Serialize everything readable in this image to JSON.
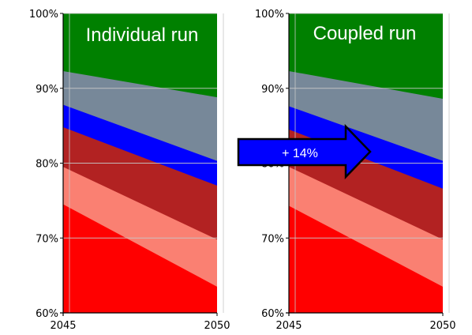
{
  "chart_data": [
    {
      "type": "area",
      "title": "Individual run",
      "x": [
        2045,
        2050
      ],
      "xlim": [
        2045,
        2050
      ],
      "ylim": [
        60,
        100
      ],
      "x_tick_labels": [
        "2045",
        "2050"
      ],
      "y_tick_labels": [
        "60%",
        "70%",
        "80%",
        "90%",
        "100%"
      ],
      "y_ticks": [
        60,
        70,
        80,
        90,
        100
      ],
      "grid": true,
      "boundaries": [
        {
          "color": "#ff0000",
          "values": [
            74.5,
            63.5
          ]
        },
        {
          "color": "#fa8072",
          "values": [
            79.5,
            69.8
          ]
        },
        {
          "color": "#b22222",
          "values": [
            84.8,
            77.0
          ]
        },
        {
          "color": "#0000ff",
          "values": [
            87.8,
            80.3
          ]
        },
        {
          "color": "#778899",
          "values": [
            92.3,
            88.8
          ]
        },
        {
          "color": "#008000",
          "values": [
            100,
            100
          ]
        }
      ]
    },
    {
      "type": "area",
      "title": "Coupled run",
      "x": [
        2045,
        2050
      ],
      "xlim": [
        2045,
        2050
      ],
      "ylim": [
        60,
        100
      ],
      "x_tick_labels": [
        "2045",
        "2050"
      ],
      "y_tick_labels": [
        "60%",
        "70%",
        "80%",
        "90%",
        "100%"
      ],
      "y_ticks": [
        60,
        70,
        80,
        90,
        100
      ],
      "grid": true,
      "boundaries": [
        {
          "color": "#ff0000",
          "values": [
            74.3,
            63.5
          ]
        },
        {
          "color": "#fa8072",
          "values": [
            79.5,
            69.8
          ]
        },
        {
          "color": "#b22222",
          "values": [
            84.5,
            76.6
          ]
        },
        {
          "color": "#0000ff",
          "values": [
            87.6,
            80.3
          ]
        },
        {
          "color": "#778899",
          "values": [
            92.3,
            88.6
          ]
        },
        {
          "color": "#008000",
          "values": [
            100,
            100
          ]
        }
      ]
    }
  ],
  "arrow": {
    "label": "+ 14%",
    "fill": "#0000ff"
  }
}
